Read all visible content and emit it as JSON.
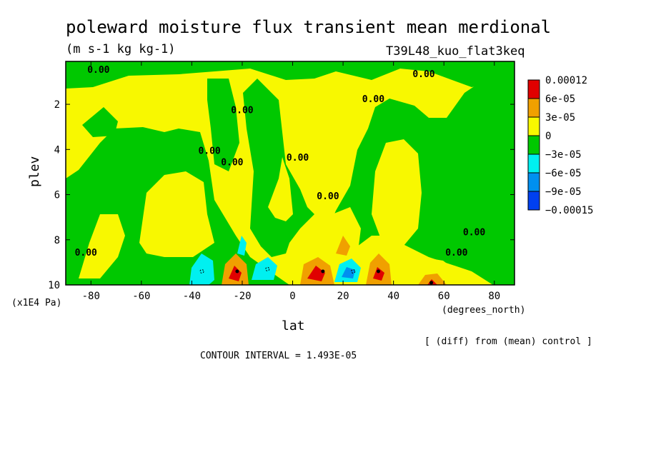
{
  "chart_data": {
    "type": "heatmap",
    "title": "poleward moisture flux transient mean merdional",
    "units": "(m s-1 kg kg-1)",
    "experiment": "T39L48_kuo_flat3keq",
    "xlabel": "lat",
    "x_units": "(degrees_north)",
    "ylabel": "plev",
    "y_units": "(x1E4 Pa)",
    "xlim": [
      -90,
      88
    ],
    "ylim": [
      10,
      0.1
    ],
    "x_ticks": [
      -80,
      -60,
      -40,
      -20,
      0,
      20,
      40,
      60,
      80
    ],
    "x_tick_labels": [
      "-80",
      "-60",
      "-40",
      "-20",
      "0",
      "20",
      "40",
      "60",
      "80"
    ],
    "y_ticks": [
      2,
      4,
      6,
      8,
      10
    ],
    "y_tick_labels": [
      "2",
      "4",
      "6",
      "8",
      "10"
    ],
    "contour_label": "0.00",
    "note": "[ (diff) from (mean) control ]",
    "contour_interval_text": "CONTOUR INTERVAL = 1.493E-05",
    "colorbar": {
      "colors": [
        "#e00000",
        "#f0a000",
        "#f8f800",
        "#00c800",
        "#00f0f0",
        "#0090f0",
        "#0040f0"
      ],
      "labels": [
        "0.00012",
        "6e-05",
        "3e-05",
        "0",
        "−3e-05",
        "−6e-05",
        "−9e-05",
        "−0.00015"
      ]
    },
    "zero_contour_labels": [
      {
        "lat": -77,
        "plev": 0.6
      },
      {
        "lat": 52,
        "plev": 0.8
      },
      {
        "lat": 32,
        "plev": 1.9
      },
      {
        "lat": -20,
        "plev": 2.4
      },
      {
        "lat": -33,
        "plev": 4.2
      },
      {
        "lat": -24,
        "plev": 4.7
      },
      {
        "lat": 2,
        "plev": 4.5
      },
      {
        "lat": 14,
        "plev": 6.2
      },
      {
        "lat": 72,
        "plev": 7.8
      },
      {
        "lat": -82,
        "plev": 8.7
      },
      {
        "lat": 65,
        "plev": 8.7
      }
    ],
    "extrema": {
      "max_centers": [
        {
          "lat": -22,
          "plev": 9.4,
          "value": 0.00012
        },
        {
          "lat": 12,
          "plev": 9.4,
          "value": 0.00012
        },
        {
          "lat": 34,
          "plev": 9.4,
          "value": 0.00012
        },
        {
          "lat": 55,
          "plev": 9.9,
          "value": 0.00012
        }
      ],
      "min_centers": [
        {
          "lat": -36,
          "plev": 9.4,
          "value": -6e-05
        },
        {
          "lat": -10,
          "plev": 9.3,
          "value": -6e-05
        },
        {
          "lat": 24,
          "plev": 9.4,
          "value": -9e-05
        }
      ]
    }
  }
}
